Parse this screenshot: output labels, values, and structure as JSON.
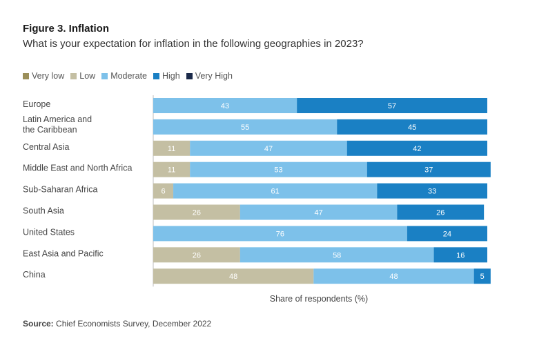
{
  "figure": {
    "title": "Figure 3. Inflation",
    "subtitle": "What is your expectation for inflation in the following geographies in 2023?",
    "source_label": "Source:",
    "source_text": " Chief Economists Survey, December 2022"
  },
  "chart_data": {
    "type": "bar",
    "orientation": "horizontal",
    "stacked": true,
    "xlabel": "Share of respondents (%)",
    "xlim": [
      0,
      100
    ],
    "legend_position": "top-left",
    "categories": [
      [
        "Europe"
      ],
      [
        "Latin America and",
        "the Caribbean"
      ],
      [
        "Central Asia"
      ],
      [
        "Middle East and North Africa"
      ],
      [
        "Sub-Saharan Africa"
      ],
      [
        "South Asia"
      ],
      [
        "United States"
      ],
      [
        "East Asia and Pacific"
      ],
      [
        "China"
      ]
    ],
    "series": [
      {
        "name": "Very low",
        "color": "#9b8f5a",
        "values": [
          0,
          0,
          0,
          0,
          0,
          0,
          0,
          0,
          0
        ]
      },
      {
        "name": "Low",
        "color": "#c4bfa3",
        "values": [
          0,
          0,
          11,
          11,
          6,
          26,
          0,
          26,
          48
        ]
      },
      {
        "name": "Moderate",
        "color": "#7dc1ea",
        "values": [
          43,
          55,
          47,
          53,
          61,
          47,
          76,
          58,
          48
        ]
      },
      {
        "name": "High",
        "color": "#1a80c4",
        "values": [
          57,
          45,
          42,
          37,
          33,
          26,
          24,
          16,
          5
        ]
      },
      {
        "name": "Very High",
        "color": "#1b2a4a",
        "values": [
          0,
          0,
          0,
          0,
          0,
          0,
          0,
          0,
          0
        ]
      }
    ]
  }
}
